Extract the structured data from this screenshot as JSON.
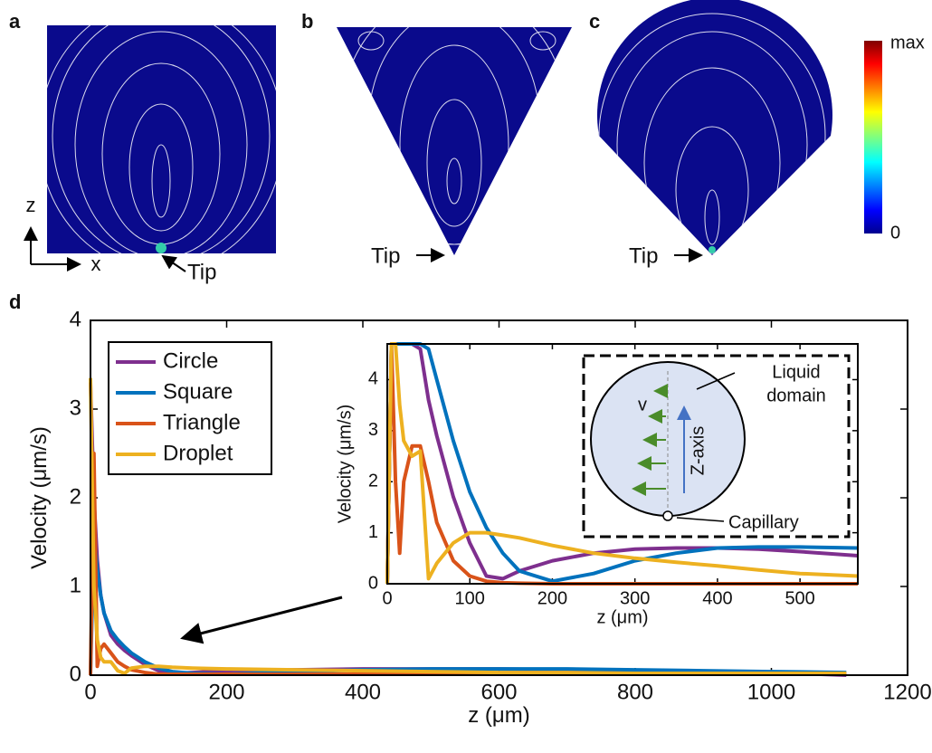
{
  "panels": [
    {
      "label": "a",
      "axes": [
        "z",
        "x"
      ],
      "tip": "Tip"
    },
    {
      "label": "b",
      "tip": "Tip"
    },
    {
      "label": "c",
      "tip": "Tip"
    },
    {
      "label": "d"
    }
  ],
  "colorbar": {
    "top": "max",
    "bottom": "0"
  },
  "inset_diagram": {
    "velocity": "v",
    "axis": "Z-axis",
    "domain": [
      "Liquid",
      "domain"
    ],
    "capillary": "Capillary"
  },
  "chart_data": [
    {
      "type": "line",
      "xlabel": "z (μm)",
      "ylabel": "Velocity (μm/s)",
      "x": [
        0,
        5,
        10,
        15,
        20,
        30,
        40,
        50,
        60,
        80,
        100,
        120,
        150,
        200,
        300,
        400,
        500,
        600,
        700,
        800,
        900,
        1000,
        1110
      ],
      "series": [
        {
          "name": "Circle",
          "color": "#7e2f8e",
          "values": [
            3.3,
            2.0,
            1.3,
            0.9,
            0.7,
            0.45,
            0.35,
            0.28,
            0.22,
            0.12,
            0.05,
            0.02,
            0.03,
            0.05,
            0.06,
            0.07,
            0.07,
            0.07,
            0.06,
            0.05,
            0.04,
            0.03,
            0.0
          ]
        },
        {
          "name": "Square",
          "color": "#0072bd",
          "values": [
            0,
            1.6,
            1.2,
            0.9,
            0.7,
            0.5,
            0.4,
            0.32,
            0.25,
            0.15,
            0.08,
            0.04,
            0.02,
            0.01,
            0.04,
            0.06,
            0.07,
            0.07,
            0.07,
            0.06,
            0.05,
            0.04,
            0.03
          ]
        },
        {
          "name": "Triangle",
          "color": "#d95319",
          "values": [
            0,
            2.5,
            0.1,
            0.3,
            0.35,
            0.25,
            0.15,
            0.1,
            0.06,
            0.03,
            0.01,
            0.01,
            0.01,
            0.01,
            0.01,
            0.01,
            0.01,
            0.01,
            0.01,
            0.01,
            0.01,
            0.01,
            0.01
          ]
        },
        {
          "name": "Droplet",
          "color": "#edb120",
          "values": [
            3.35,
            1.0,
            0.4,
            0.2,
            0.15,
            0.15,
            0.05,
            0.02,
            0.08,
            0.1,
            0.1,
            0.09,
            0.08,
            0.07,
            0.06,
            0.05,
            0.04,
            0.03,
            0.03,
            0.02,
            0.02,
            0.02,
            0.02
          ]
        }
      ],
      "xlim": [
        0,
        1200
      ],
      "xticks": [
        0,
        200,
        400,
        600,
        800,
        1000,
        1200
      ],
      "ylim": [
        0,
        4
      ],
      "yticks": [
        0,
        1,
        2,
        3,
        4
      ],
      "legend": "upper left"
    },
    {
      "type": "line",
      "xlabel": "z (μm)",
      "ylabel": "Velocity (μm/s)",
      "x": [
        0,
        5,
        10,
        15,
        20,
        30,
        40,
        50,
        60,
        80,
        100,
        120,
        140,
        160,
        200,
        250,
        300,
        350,
        400,
        450,
        500,
        570
      ],
      "series": [
        {
          "name": "Circle",
          "color": "#7e2f8e",
          "values": [
            0,
            4.7,
            4.7,
            4.7,
            4.7,
            4.7,
            4.6,
            3.6,
            2.9,
            1.7,
            0.8,
            0.15,
            0.1,
            0.25,
            0.45,
            0.6,
            0.68,
            0.7,
            0.7,
            0.68,
            0.63,
            0.55
          ]
        },
        {
          "name": "Square",
          "color": "#0072bd",
          "values": [
            0,
            4.7,
            4.7,
            4.7,
            4.7,
            4.7,
            4.7,
            4.6,
            4.0,
            2.8,
            1.8,
            1.1,
            0.6,
            0.25,
            0.05,
            0.2,
            0.45,
            0.6,
            0.7,
            0.72,
            0.72,
            0.7
          ]
        },
        {
          "name": "Triangle",
          "color": "#d95319",
          "values": [
            0,
            4.7,
            2.0,
            0.6,
            2.0,
            2.7,
            2.7,
            2.0,
            1.2,
            0.45,
            0.15,
            0.05,
            0.02,
            0.01,
            0.0,
            0,
            0,
            0,
            0,
            0,
            0,
            0
          ]
        },
        {
          "name": "Droplet",
          "color": "#edb120",
          "values": [
            0,
            4.7,
            4.7,
            3.5,
            2.8,
            2.5,
            2.6,
            0.1,
            0.4,
            0.8,
            1.0,
            1.0,
            0.95,
            0.9,
            0.75,
            0.6,
            0.5,
            0.42,
            0.35,
            0.27,
            0.2,
            0.15
          ]
        }
      ],
      "xlim": [
        0,
        570
      ],
      "xticks": [
        0,
        100,
        200,
        300,
        400,
        500
      ],
      "ylim": [
        0,
        4.7
      ],
      "yticks": [
        0,
        1,
        2,
        3,
        4
      ]
    }
  ]
}
